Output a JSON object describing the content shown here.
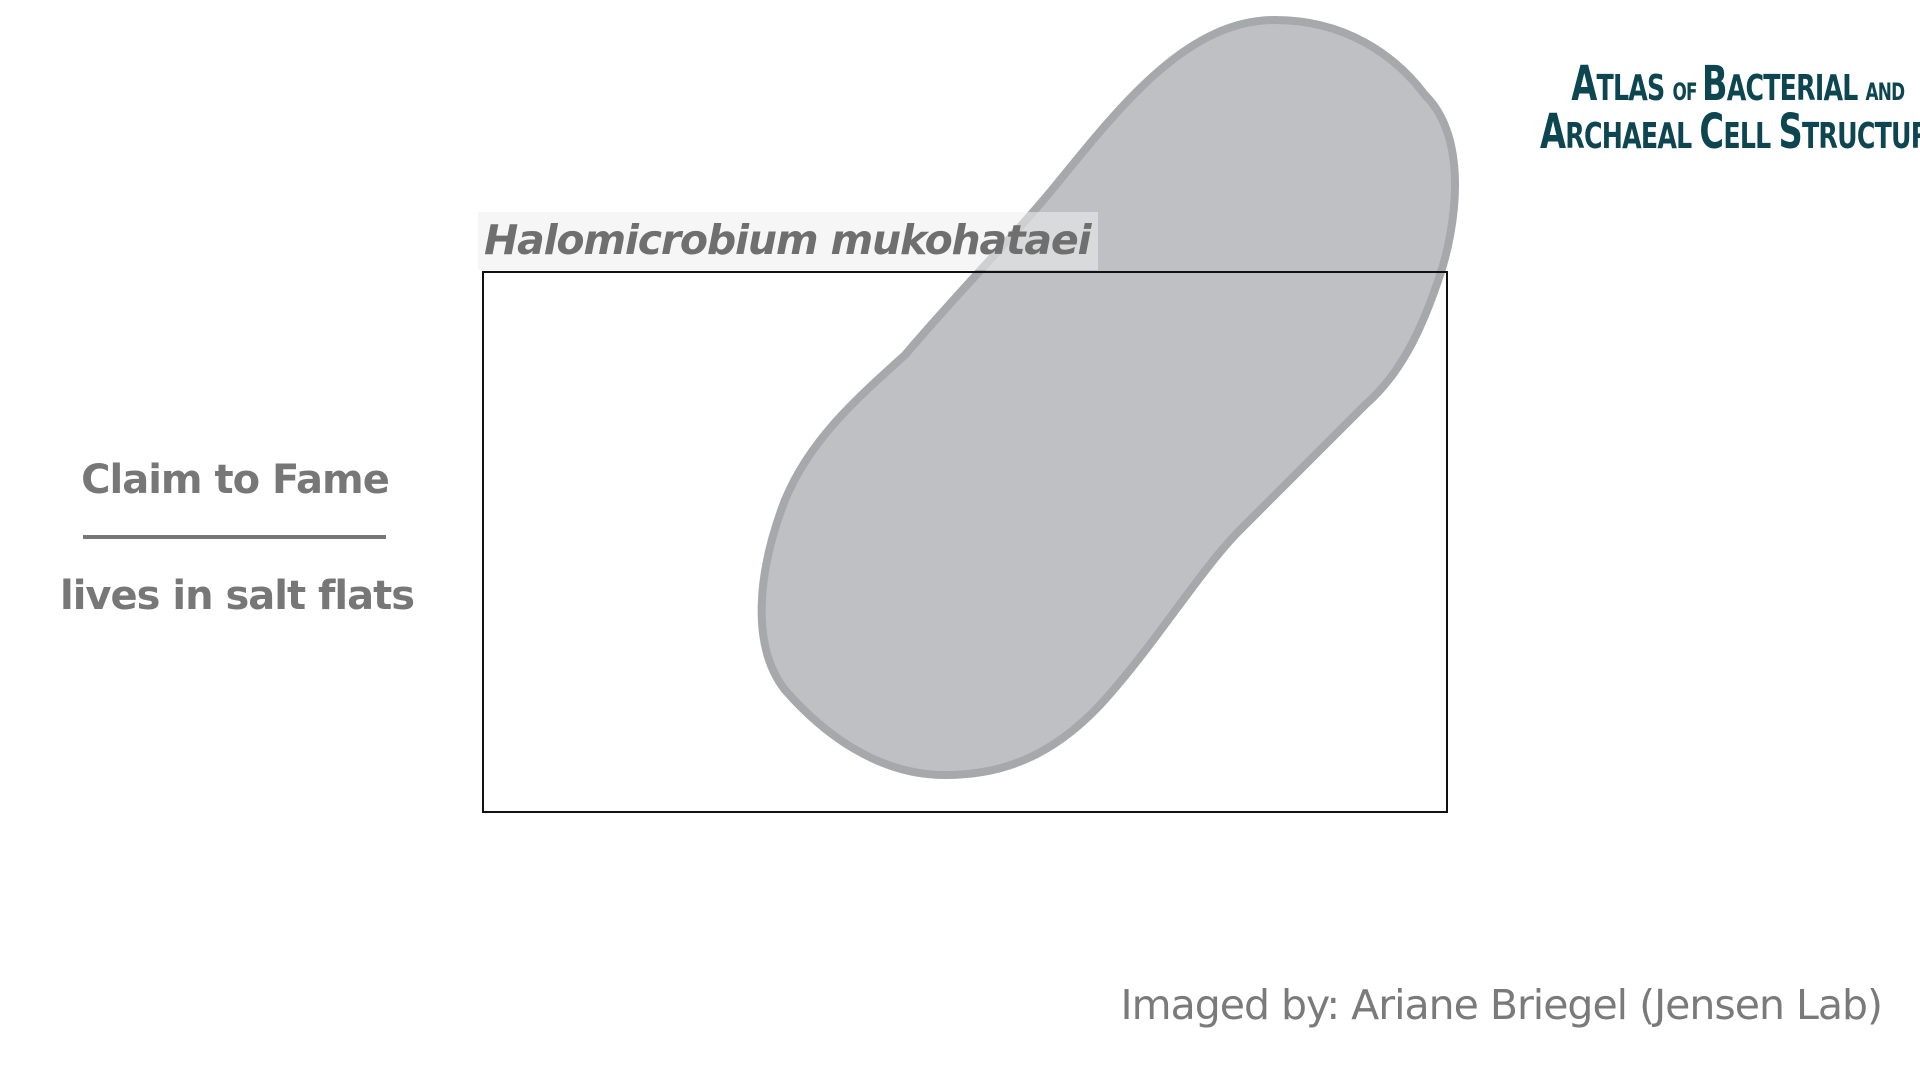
{
  "species_name": "Halomicrobium mukohataei",
  "claim_to_fame": {
    "heading": "Claim to Fame",
    "text": "lives in salt flats"
  },
  "credit": "Imaged by: Ariane Briegel (Jensen Lab)",
  "logo": {
    "line1": [
      {
        "text": "A",
        "size": "big"
      },
      {
        "text": "TLAS ",
        "size": "caps"
      },
      {
        "text": "OF ",
        "size": "small"
      },
      {
        "text": "B",
        "size": "big"
      },
      {
        "text": "ACTERIAL ",
        "size": "caps"
      },
      {
        "text": "AND",
        "size": "small"
      }
    ],
    "line2": [
      {
        "text": "A",
        "size": "big"
      },
      {
        "text": "RCHAEAL ",
        "size": "caps"
      },
      {
        "text": "C",
        "size": "big"
      },
      {
        "text": "ELL ",
        "size": "caps"
      },
      {
        "text": "S",
        "size": "big"
      },
      {
        "text": "TRUCTURE",
        "size": "caps"
      }
    ],
    "color": "#0d4650"
  },
  "colors": {
    "cell_fill": "#bfc0c3",
    "cell_outline": "#a7a8ab",
    "text_gray": "#777777",
    "frame": "#111111"
  }
}
